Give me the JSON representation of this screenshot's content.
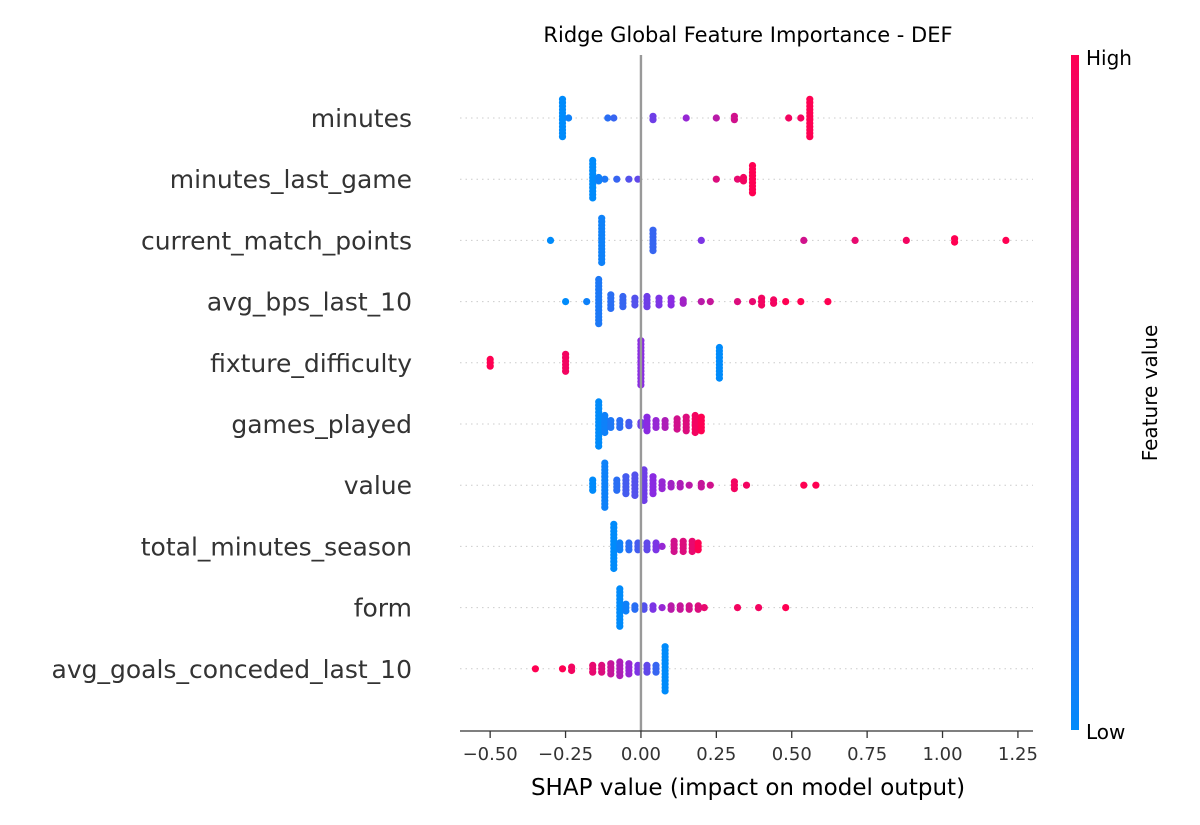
{
  "chart_data": {
    "type": "scatter",
    "subtype": "shap-beeswarm",
    "title": "Ridge Global Feature Importance - DEF",
    "xlabel": "SHAP value (impact on model output)",
    "xlim": [
      -0.6,
      1.3
    ],
    "xticks": [
      -0.5,
      -0.25,
      0.0,
      0.25,
      0.5,
      0.75,
      1.0,
      1.25
    ],
    "xtick_labels": [
      "−0.50",
      "−0.25",
      "0.00",
      "0.25",
      "0.50",
      "0.75",
      "1.00",
      "1.25"
    ],
    "zero_line": 0.0,
    "colorbar": {
      "label": "Feature value",
      "high_label": "High",
      "low_label": "Low",
      "low_color": "#008bfb",
      "mid_color": "#8a2be2",
      "high_color": "#ff0052"
    },
    "features": [
      {
        "name": "minutes",
        "points": [
          {
            "x": -0.26,
            "v": 0.0,
            "n": 12
          },
          {
            "x": -0.24,
            "v": 0.05,
            "n": 1
          },
          {
            "x": -0.11,
            "v": 0.15,
            "n": 1
          },
          {
            "x": -0.09,
            "v": 0.2,
            "n": 1
          },
          {
            "x": 0.04,
            "v": 0.4,
            "n": 2
          },
          {
            "x": 0.15,
            "v": 0.55,
            "n": 1
          },
          {
            "x": 0.25,
            "v": 0.7,
            "n": 1
          },
          {
            "x": 0.31,
            "v": 0.8,
            "n": 2
          },
          {
            "x": 0.49,
            "v": 0.95,
            "n": 1
          },
          {
            "x": 0.53,
            "v": 0.95,
            "n": 1
          },
          {
            "x": 0.56,
            "v": 1.0,
            "n": 12
          }
        ]
      },
      {
        "name": "minutes_last_game",
        "points": [
          {
            "x": -0.16,
            "v": 0.0,
            "n": 12
          },
          {
            "x": -0.14,
            "v": 0.05,
            "n": 2
          },
          {
            "x": -0.12,
            "v": 0.1,
            "n": 1
          },
          {
            "x": -0.08,
            "v": 0.2,
            "n": 1
          },
          {
            "x": -0.04,
            "v": 0.3,
            "n": 1
          },
          {
            "x": -0.01,
            "v": 0.35,
            "n": 1
          },
          {
            "x": 0.25,
            "v": 0.85,
            "n": 1
          },
          {
            "x": 0.32,
            "v": 0.9,
            "n": 1
          },
          {
            "x": 0.34,
            "v": 0.95,
            "n": 2
          },
          {
            "x": 0.37,
            "v": 1.0,
            "n": 9
          }
        ]
      },
      {
        "name": "current_match_points",
        "points": [
          {
            "x": -0.3,
            "v": 0.0,
            "n": 1
          },
          {
            "x": -0.13,
            "v": 0.05,
            "n": 14
          },
          {
            "x": 0.04,
            "v": 0.2,
            "n": 7
          },
          {
            "x": 0.2,
            "v": 0.45,
            "n": 1
          },
          {
            "x": 0.54,
            "v": 0.8,
            "n": 1
          },
          {
            "x": 0.71,
            "v": 0.9,
            "n": 1
          },
          {
            "x": 0.88,
            "v": 0.95,
            "n": 1
          },
          {
            "x": 1.04,
            "v": 1.0,
            "n": 2
          },
          {
            "x": 1.21,
            "v": 1.0,
            "n": 1
          }
        ]
      },
      {
        "name": "avg_bps_last_10",
        "points": [
          {
            "x": -0.25,
            "v": 0.0,
            "n": 1
          },
          {
            "x": -0.18,
            "v": 0.05,
            "n": 1
          },
          {
            "x": -0.14,
            "v": 0.1,
            "n": 14
          },
          {
            "x": -0.1,
            "v": 0.15,
            "n": 5
          },
          {
            "x": -0.06,
            "v": 0.2,
            "n": 4
          },
          {
            "x": -0.02,
            "v": 0.3,
            "n": 3
          },
          {
            "x": 0.02,
            "v": 0.4,
            "n": 4
          },
          {
            "x": 0.06,
            "v": 0.45,
            "n": 3
          },
          {
            "x": 0.1,
            "v": 0.5,
            "n": 3
          },
          {
            "x": 0.14,
            "v": 0.6,
            "n": 2
          },
          {
            "x": 0.2,
            "v": 0.7,
            "n": 1
          },
          {
            "x": 0.23,
            "v": 0.75,
            "n": 1
          },
          {
            "x": 0.32,
            "v": 0.85,
            "n": 1
          },
          {
            "x": 0.37,
            "v": 0.9,
            "n": 1
          },
          {
            "x": 0.4,
            "v": 0.95,
            "n": 3
          },
          {
            "x": 0.44,
            "v": 0.95,
            "n": 2
          },
          {
            "x": 0.48,
            "v": 1.0,
            "n": 1
          },
          {
            "x": 0.53,
            "v": 1.0,
            "n": 1
          },
          {
            "x": 0.62,
            "v": 1.0,
            "n": 1
          }
        ]
      },
      {
        "name": "fixture_difficulty",
        "points": [
          {
            "x": -0.5,
            "v": 1.0,
            "n": 3
          },
          {
            "x": -0.25,
            "v": 0.95,
            "n": 6
          },
          {
            "x": 0.0,
            "v": 0.5,
            "n": 14
          },
          {
            "x": 0.26,
            "v": 0.0,
            "n": 10
          }
        ]
      },
      {
        "name": "games_played",
        "points": [
          {
            "x": -0.14,
            "v": 0.0,
            "n": 14
          },
          {
            "x": -0.12,
            "v": 0.05,
            "n": 6
          },
          {
            "x": -0.1,
            "v": 0.1,
            "n": 3
          },
          {
            "x": -0.07,
            "v": 0.15,
            "n": 3
          },
          {
            "x": -0.04,
            "v": 0.25,
            "n": 2
          },
          {
            "x": 0.0,
            "v": 0.4,
            "n": 2
          },
          {
            "x": 0.02,
            "v": 0.5,
            "n": 5
          },
          {
            "x": 0.05,
            "v": 0.55,
            "n": 3
          },
          {
            "x": 0.08,
            "v": 0.65,
            "n": 3
          },
          {
            "x": 0.12,
            "v": 0.8,
            "n": 4
          },
          {
            "x": 0.15,
            "v": 0.85,
            "n": 5
          },
          {
            "x": 0.18,
            "v": 0.95,
            "n": 6
          },
          {
            "x": 0.2,
            "v": 1.0,
            "n": 5
          }
        ]
      },
      {
        "name": "value",
        "points": [
          {
            "x": -0.16,
            "v": 0.0,
            "n": 4
          },
          {
            "x": -0.12,
            "v": 0.05,
            "n": 14
          },
          {
            "x": -0.08,
            "v": 0.15,
            "n": 4
          },
          {
            "x": -0.05,
            "v": 0.25,
            "n": 6
          },
          {
            "x": -0.02,
            "v": 0.3,
            "n": 7
          },
          {
            "x": 0.01,
            "v": 0.4,
            "n": 10
          },
          {
            "x": 0.04,
            "v": 0.5,
            "n": 6
          },
          {
            "x": 0.07,
            "v": 0.55,
            "n": 3
          },
          {
            "x": 0.1,
            "v": 0.6,
            "n": 2
          },
          {
            "x": 0.13,
            "v": 0.65,
            "n": 2
          },
          {
            "x": 0.16,
            "v": 0.7,
            "n": 1
          },
          {
            "x": 0.2,
            "v": 0.75,
            "n": 2
          },
          {
            "x": 0.23,
            "v": 0.8,
            "n": 1
          },
          {
            "x": 0.31,
            "v": 0.95,
            "n": 3
          },
          {
            "x": 0.35,
            "v": 0.95,
            "n": 1
          },
          {
            "x": 0.54,
            "v": 1.0,
            "n": 1
          },
          {
            "x": 0.58,
            "v": 1.0,
            "n": 1
          }
        ]
      },
      {
        "name": "total_minutes_season",
        "points": [
          {
            "x": -0.09,
            "v": 0.0,
            "n": 14
          },
          {
            "x": -0.07,
            "v": 0.05,
            "n": 3
          },
          {
            "x": -0.04,
            "v": 0.15,
            "n": 3
          },
          {
            "x": -0.01,
            "v": 0.25,
            "n": 3
          },
          {
            "x": 0.02,
            "v": 0.35,
            "n": 3
          },
          {
            "x": 0.05,
            "v": 0.45,
            "n": 3
          },
          {
            "x": 0.07,
            "v": 0.55,
            "n": 1
          },
          {
            "x": 0.11,
            "v": 0.8,
            "n": 4
          },
          {
            "x": 0.14,
            "v": 0.85,
            "n": 4
          },
          {
            "x": 0.17,
            "v": 0.9,
            "n": 4
          },
          {
            "x": 0.19,
            "v": 1.0,
            "n": 3
          }
        ]
      },
      {
        "name": "form",
        "points": [
          {
            "x": -0.07,
            "v": 0.0,
            "n": 12
          },
          {
            "x": -0.05,
            "v": 0.05,
            "n": 3
          },
          {
            "x": -0.02,
            "v": 0.15,
            "n": 2
          },
          {
            "x": 0.01,
            "v": 0.3,
            "n": 2
          },
          {
            "x": 0.04,
            "v": 0.45,
            "n": 2
          },
          {
            "x": 0.07,
            "v": 0.55,
            "n": 1
          },
          {
            "x": 0.1,
            "v": 0.7,
            "n": 2
          },
          {
            "x": 0.13,
            "v": 0.75,
            "n": 2
          },
          {
            "x": 0.16,
            "v": 0.8,
            "n": 2
          },
          {
            "x": 0.19,
            "v": 0.85,
            "n": 2
          },
          {
            "x": 0.21,
            "v": 0.9,
            "n": 1
          },
          {
            "x": 0.32,
            "v": 0.95,
            "n": 1
          },
          {
            "x": 0.39,
            "v": 0.95,
            "n": 1
          },
          {
            "x": 0.48,
            "v": 1.0,
            "n": 1
          }
        ]
      },
      {
        "name": "avg_goals_conceded_last_10",
        "points": [
          {
            "x": -0.35,
            "v": 1.0,
            "n": 1
          },
          {
            "x": -0.26,
            "v": 1.0,
            "n": 1
          },
          {
            "x": -0.23,
            "v": 0.95,
            "n": 2
          },
          {
            "x": -0.16,
            "v": 0.9,
            "n": 3
          },
          {
            "x": -0.13,
            "v": 0.85,
            "n": 3
          },
          {
            "x": -0.1,
            "v": 0.75,
            "n": 4
          },
          {
            "x": -0.07,
            "v": 0.65,
            "n": 5
          },
          {
            "x": -0.04,
            "v": 0.55,
            "n": 4
          },
          {
            "x": -0.01,
            "v": 0.45,
            "n": 3
          },
          {
            "x": 0.02,
            "v": 0.35,
            "n": 3
          },
          {
            "x": 0.05,
            "v": 0.2,
            "n": 3
          },
          {
            "x": 0.08,
            "v": 0.0,
            "n": 14
          }
        ]
      }
    ]
  }
}
